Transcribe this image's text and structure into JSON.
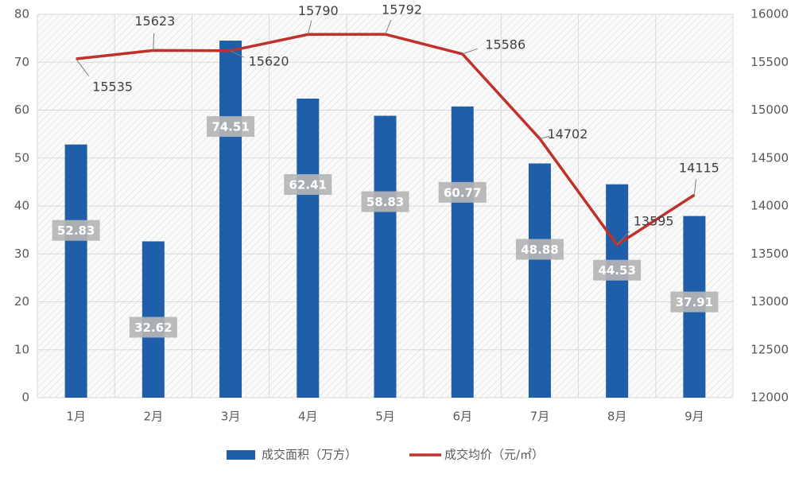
{
  "chart_data": {
    "type": "combo",
    "categories": [
      "1月",
      "2月",
      "3月",
      "4月",
      "5月",
      "6月",
      "7月",
      "8月",
      "9月"
    ],
    "series": [
      {
        "name": "成交面积（万方）",
        "type": "bar",
        "color": "#1f5ea8",
        "values": [
          52.83,
          32.62,
          74.51,
          62.41,
          58.83,
          60.77,
          48.88,
          44.53,
          37.91
        ]
      },
      {
        "name": "成交均价（元/㎡）",
        "type": "line",
        "axis": "y2",
        "color": "#c0312b",
        "values": [
          15535,
          15623,
          15620,
          15790,
          15792,
          15586,
          14702,
          13595,
          14115
        ]
      }
    ],
    "ylim": [
      0,
      80
    ],
    "yticks": [
      0,
      10,
      20,
      30,
      40,
      50,
      60,
      70,
      80
    ],
    "y2lim": [
      12000,
      16000
    ],
    "y2ticks": [
      12000,
      12500,
      13000,
      13500,
      14000,
      14500,
      15000,
      15500,
      16000
    ],
    "grid": true,
    "legend": "bottom"
  }
}
